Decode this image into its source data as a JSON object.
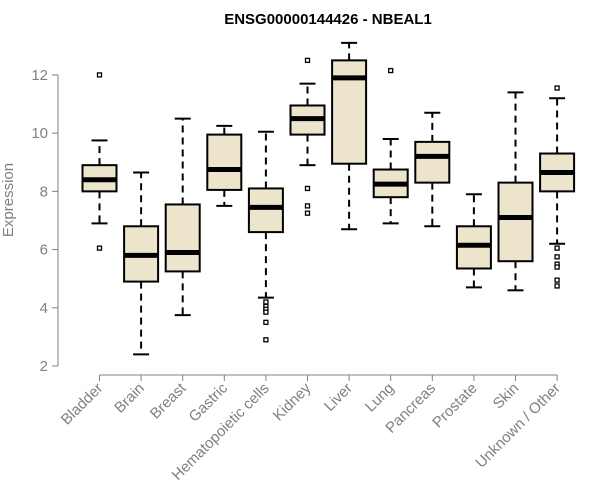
{
  "chart_data": {
    "type": "boxplot",
    "title": "ENSG00000144426 - NBEAL1",
    "xlabel": "",
    "ylabel": "Expression",
    "ylim": [
      2,
      13.2
    ],
    "yticks": [
      2,
      4,
      6,
      8,
      10,
      12
    ],
    "box_fill": "#ede5cb",
    "box_stroke": "#000000",
    "axis_color": "#808080",
    "categories": [
      "Bladder",
      "Brain",
      "Breast",
      "Gastric",
      "Hematopoietic cells",
      "Kidney",
      "Liver",
      "Lung",
      "Pancreas",
      "Prostate",
      "Skin",
      "Unknown / Other"
    ],
    "boxes": [
      {
        "name": "Bladder",
        "whisker_low": 6.9,
        "q1": 8.0,
        "median": 8.4,
        "q3": 8.9,
        "whisker_high": 9.75,
        "outliers": [
          12.0,
          6.05
        ]
      },
      {
        "name": "Brain",
        "whisker_low": 2.4,
        "q1": 4.9,
        "median": 5.8,
        "q3": 6.8,
        "whisker_high": 8.65,
        "outliers": []
      },
      {
        "name": "Breast",
        "whisker_low": 3.75,
        "q1": 5.25,
        "median": 5.9,
        "q3": 7.55,
        "whisker_high": 10.5,
        "outliers": []
      },
      {
        "name": "Gastric",
        "whisker_low": 7.5,
        "q1": 8.05,
        "median": 8.75,
        "q3": 9.95,
        "whisker_high": 10.25,
        "outliers": []
      },
      {
        "name": "Hematopoietic cells",
        "whisker_low": 4.35,
        "q1": 6.6,
        "median": 7.45,
        "q3": 8.1,
        "whisker_high": 10.05,
        "outliers": [
          4.2,
          4.05,
          3.95,
          3.85,
          3.5,
          2.9
        ]
      },
      {
        "name": "Kidney",
        "whisker_low": 8.9,
        "q1": 9.95,
        "median": 10.5,
        "q3": 10.95,
        "whisker_high": 11.7,
        "outliers": [
          12.5,
          8.1,
          7.5,
          7.25
        ]
      },
      {
        "name": "Liver",
        "whisker_low": 6.7,
        "q1": 8.95,
        "median": 11.9,
        "q3": 12.5,
        "whisker_high": 13.1,
        "outliers": []
      },
      {
        "name": "Lung",
        "whisker_low": 6.9,
        "q1": 7.8,
        "median": 8.25,
        "q3": 8.75,
        "whisker_high": 9.8,
        "outliers": [
          12.15
        ]
      },
      {
        "name": "Pancreas",
        "whisker_low": 6.8,
        "q1": 8.3,
        "median": 9.2,
        "q3": 9.7,
        "whisker_high": 10.7,
        "outliers": []
      },
      {
        "name": "Prostate",
        "whisker_low": 4.7,
        "q1": 5.35,
        "median": 6.15,
        "q3": 6.8,
        "whisker_high": 7.9,
        "outliers": []
      },
      {
        "name": "Skin",
        "whisker_low": 4.6,
        "q1": 5.6,
        "median": 7.1,
        "q3": 8.3,
        "whisker_high": 11.4,
        "outliers": []
      },
      {
        "name": "Unknown / Other",
        "whisker_low": 6.2,
        "q1": 8.0,
        "median": 8.65,
        "q3": 9.3,
        "whisker_high": 11.2,
        "outliers": [
          11.55,
          6.05,
          5.75,
          5.5,
          5.4,
          4.95,
          4.75
        ]
      }
    ]
  }
}
